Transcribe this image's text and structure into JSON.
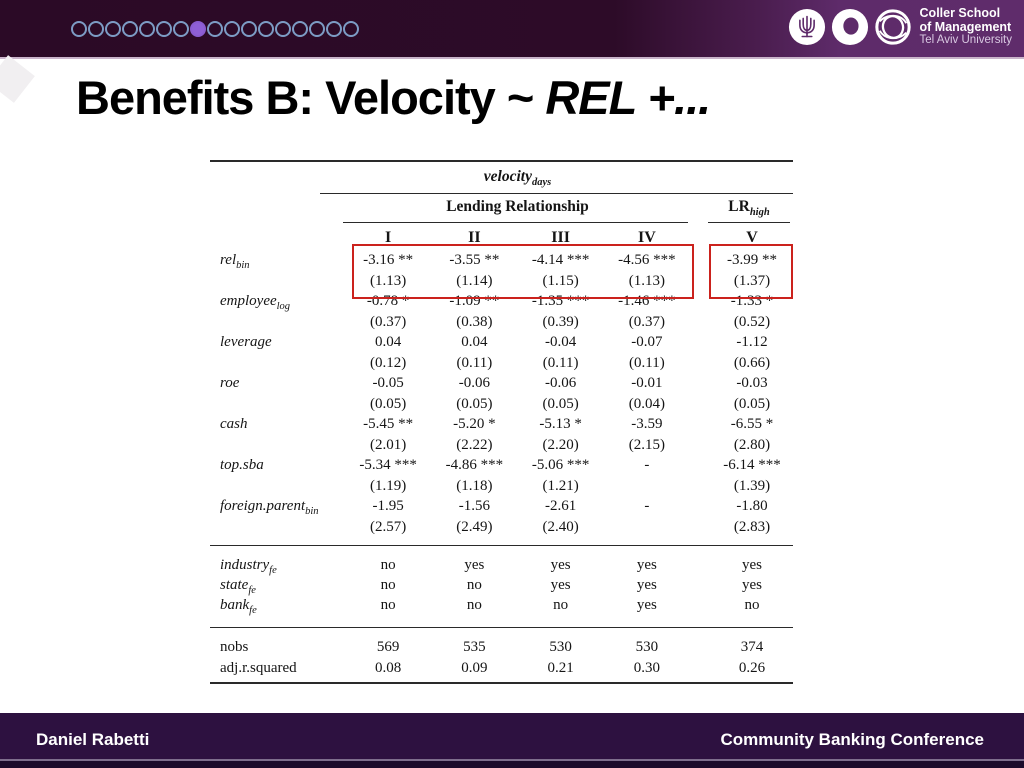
{
  "header": {
    "progress_dots": {
      "total": 17,
      "active_index": 8
    },
    "logo": {
      "line1": "Coller School",
      "line2": "of Management",
      "line3": "Tel Aviv University"
    }
  },
  "title": {
    "regular": "Benefits B: Velocity ~ ",
    "italic": "REL +..."
  },
  "table": {
    "outcome_header": {
      "text": "velocity",
      "sub": "days"
    },
    "group_headers": [
      {
        "text": "Lending Relationship",
        "sub": ""
      },
      {
        "text": "LR",
        "sub": "high"
      }
    ],
    "columns": [
      "I",
      "II",
      "III",
      "IV",
      "V"
    ],
    "coef_rows": [
      {
        "label": {
          "text": "rel",
          "sub": "bin",
          "italic": true
        },
        "estimates": [
          "-3.16 **",
          "-3.55 **",
          "-4.14 ***",
          "-4.56 ***",
          "-3.99 **"
        ],
        "se": [
          "(1.13)",
          "(1.14)",
          "(1.15)",
          "(1.13)",
          "(1.37)"
        ]
      },
      {
        "label": {
          "text": "employee",
          "sub": "log",
          "italic": true
        },
        "estimates": [
          "-0.78 *",
          "-1.09 **",
          "-1.35 ***",
          "-1.46 ***",
          "-1.33 *"
        ],
        "se": [
          "(0.37)",
          "(0.38)",
          "(0.39)",
          "(0.37)",
          "(0.52)"
        ]
      },
      {
        "label": {
          "text": "leverage",
          "sub": "",
          "italic": true
        },
        "estimates": [
          "0.04",
          "0.04",
          "-0.04",
          "-0.07",
          "-1.12"
        ],
        "se": [
          "(0.12)",
          "(0.11)",
          "(0.11)",
          "(0.11)",
          "(0.66)"
        ]
      },
      {
        "label": {
          "text": "roe",
          "sub": "",
          "italic": true
        },
        "estimates": [
          "-0.05",
          "-0.06",
          "-0.06",
          "-0.01",
          "-0.03"
        ],
        "se": [
          "(0.05)",
          "(0.05)",
          "(0.05)",
          "(0.04)",
          "(0.05)"
        ]
      },
      {
        "label": {
          "text": "cash",
          "sub": "",
          "italic": true
        },
        "estimates": [
          "-5.45 **",
          "-5.20 *",
          "-5.13 *",
          "-3.59",
          "-6.55 *"
        ],
        "se": [
          "(2.01)",
          "(2.22)",
          "(2.20)",
          "(2.15)",
          "(2.80)"
        ]
      },
      {
        "label": {
          "text": "top.sba",
          "sub": "",
          "italic": true
        },
        "estimates": [
          "-5.34 ***",
          "-4.86 ***",
          "-5.06 ***",
          "-",
          "-6.14 ***"
        ],
        "se": [
          "(1.19)",
          "(1.18)",
          "(1.21)",
          "",
          "(1.39)"
        ]
      },
      {
        "label": {
          "text": "foreign.parent",
          "sub": "bin",
          "italic": true
        },
        "estimates": [
          "-1.95",
          "-1.56",
          "-2.61",
          "-",
          "-1.80"
        ],
        "se": [
          "(2.57)",
          "(2.49)",
          "(2.40)",
          "",
          "(2.83)"
        ]
      }
    ],
    "fe_rows": [
      {
        "label": {
          "text": "industry",
          "sub": "fe",
          "italic": true
        },
        "values": [
          "no",
          "yes",
          "yes",
          "yes",
          "yes"
        ]
      },
      {
        "label": {
          "text": "state",
          "sub": "fe",
          "italic": true
        },
        "values": [
          "no",
          "no",
          "yes",
          "yes",
          "yes"
        ]
      },
      {
        "label": {
          "text": "bank",
          "sub": "fe",
          "italic": true
        },
        "values": [
          "no",
          "no",
          "no",
          "yes",
          "no"
        ]
      }
    ],
    "stats_rows": [
      {
        "label": {
          "text": "nobs",
          "sub": "",
          "italic": false
        },
        "values": [
          "569",
          "535",
          "530",
          "530",
          "374"
        ]
      },
      {
        "label": {
          "text": "adj.r.squared",
          "sub": "",
          "italic": false
        },
        "values": [
          "0.08",
          "0.09",
          "0.21",
          "0.30",
          "0.26"
        ]
      }
    ]
  },
  "footer": {
    "left": "Daniel Rabetti",
    "right": "Community Banking Conference"
  },
  "colors": {
    "topbar_dark": "#2b0a26",
    "topbar_purple": "#5e2b6a",
    "topbar_edge": "#c9b4ca",
    "dot_outline": "#7d9cc5",
    "dot_active": "#8f5fd6",
    "highlight_red": "#cb221d",
    "footer_bg": "#2d1140",
    "footer_strip": "#1c0b2b",
    "text": "#151515"
  }
}
